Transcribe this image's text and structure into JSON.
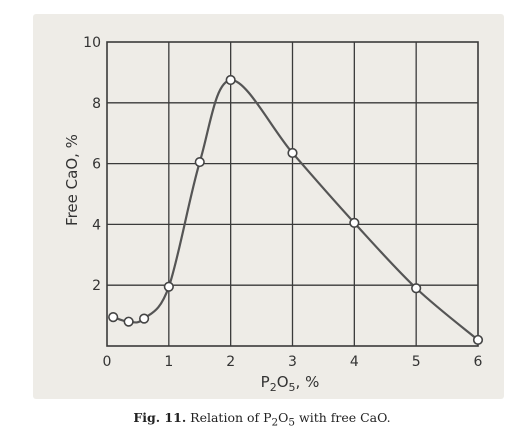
{
  "chart_data": {
    "type": "line",
    "title": "",
    "xlabel": {
      "base": "P",
      "sub1": "2",
      "mid": "O",
      "sub2": "5",
      "suffix": ", %"
    },
    "ylabel": "Free CaO, %",
    "xlim": [
      0,
      6
    ],
    "ylim": [
      0,
      10
    ],
    "xticks": [
      "0",
      "1",
      "2",
      "3",
      "4",
      "5",
      "6"
    ],
    "yticks": [
      "2",
      "4",
      "6",
      "8",
      "10"
    ],
    "grid": true,
    "series": [
      {
        "points": [
          {
            "x": 0.1,
            "y": 0.95
          },
          {
            "x": 0.35,
            "y": 0.8
          },
          {
            "x": 0.6,
            "y": 0.9
          },
          {
            "x": 1.0,
            "y": 1.95
          },
          {
            "x": 1.5,
            "y": 6.05
          },
          {
            "x": 2.0,
            "y": 8.75
          },
          {
            "x": 3.0,
            "y": 6.35
          },
          {
            "x": 4.0,
            "y": 4.05
          },
          {
            "x": 5.0,
            "y": 1.9
          },
          {
            "x": 6.0,
            "y": 0.2
          }
        ]
      }
    ],
    "colors": {
      "line": "#555555",
      "grid": "#3a3a3a",
      "marker_fill": "#ffffff",
      "background": "#eeece7"
    }
  },
  "caption": {
    "label": "Fig. 11.",
    "text_before": " Relation of P",
    "sub1": "2",
    "mid": "O",
    "sub2": "5",
    "text_after": " with free CaO."
  }
}
